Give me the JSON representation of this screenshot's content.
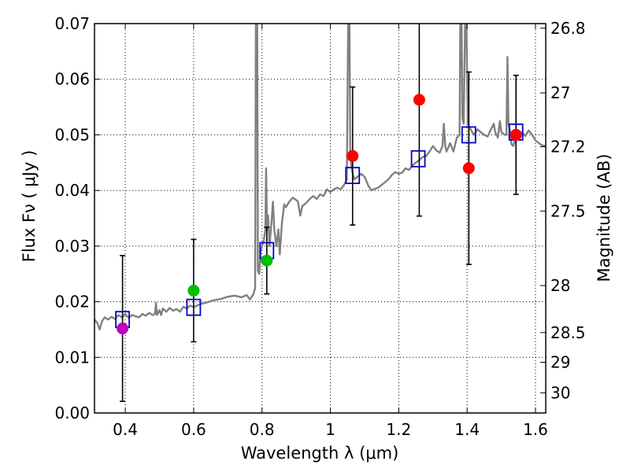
{
  "chart_data": {
    "type": "scatter",
    "xlabel": "Wavelength  λ (μm)",
    "ylabel_left": "Flux  Fν  ( μJy )",
    "ylabel_right": "Magnitude (AB)",
    "xlim": [
      0.31,
      1.63
    ],
    "ylim": [
      0.0,
      0.07
    ],
    "grid": true,
    "x_ticks": [
      0.4,
      0.6,
      0.8,
      1.0,
      1.2,
      1.4,
      1.6
    ],
    "x_tick_labels": [
      "0.4",
      "0.6",
      "0.8",
      "1",
      "1.2",
      "1.4",
      "1.6"
    ],
    "y_ticks": [
      0.0,
      0.01,
      0.02,
      0.03,
      0.04,
      0.05,
      0.06,
      0.07
    ],
    "y_tick_labels": [
      "0.00",
      "0.01",
      "0.02",
      "0.03",
      "0.04",
      "0.05",
      "0.06",
      "0.07"
    ],
    "right_ticks": [
      {
        "mag": 26.8,
        "label": "26.8"
      },
      {
        "mag": 27.0,
        "label": "27"
      },
      {
        "mag": 27.2,
        "label": "27.2"
      },
      {
        "mag": 27.5,
        "label": "27.5"
      },
      {
        "mag": 28.0,
        "label": "28"
      },
      {
        "mag": 28.5,
        "label": "28.5"
      },
      {
        "mag": 29.0,
        "label": "29"
      },
      {
        "mag": 30.0,
        "label": "30"
      }
    ],
    "observed_points": [
      {
        "x": 0.392,
        "y": 0.0152,
        "err": 0.0131,
        "color": "#bf00bf"
      },
      {
        "x": 0.6,
        "y": 0.022,
        "err": 0.0092,
        "color": "#00bf00"
      },
      {
        "x": 0.814,
        "y": 0.0274,
        "err": 0.006,
        "color": "#00bf00"
      },
      {
        "x": 1.065,
        "y": 0.0462,
        "err": 0.0124,
        "color": "#ff0000"
      },
      {
        "x": 1.26,
        "y": 0.0563,
        "err": 0.0209,
        "color": "#ff0000"
      },
      {
        "x": 1.405,
        "y": 0.044,
        "err": 0.0173,
        "color": "#ff0000"
      },
      {
        "x": 1.543,
        "y": 0.05,
        "err": 0.0107,
        "color": "#ff0000"
      }
    ],
    "model_points": [
      {
        "x": 0.392,
        "y": 0.0168
      },
      {
        "x": 0.6,
        "y": 0.019
      },
      {
        "x": 0.814,
        "y": 0.0292
      },
      {
        "x": 1.065,
        "y": 0.0427
      },
      {
        "x": 1.257,
        "y": 0.0457
      },
      {
        "x": 1.405,
        "y": 0.05
      },
      {
        "x": 1.543,
        "y": 0.0505
      }
    ],
    "model_marker_color": "#0000cc",
    "sed_color": "#808080",
    "sed_spectrum": [
      [
        0.31,
        0.0168
      ],
      [
        0.318,
        0.0162
      ],
      [
        0.325,
        0.015
      ],
      [
        0.332,
        0.0165
      ],
      [
        0.34,
        0.0172
      ],
      [
        0.35,
        0.0168
      ],
      [
        0.36,
        0.0173
      ],
      [
        0.37,
        0.0169
      ],
      [
        0.38,
        0.0176
      ],
      [
        0.39,
        0.0172
      ],
      [
        0.4,
        0.0178
      ],
      [
        0.41,
        0.0171
      ],
      [
        0.42,
        0.0176
      ],
      [
        0.43,
        0.0174
      ],
      [
        0.44,
        0.0172
      ],
      [
        0.45,
        0.0178
      ],
      [
        0.46,
        0.0175
      ],
      [
        0.47,
        0.018
      ],
      [
        0.48,
        0.0176
      ],
      [
        0.487,
        0.0178
      ],
      [
        0.49,
        0.0198
      ],
      [
        0.493,
        0.0176
      ],
      [
        0.5,
        0.0185
      ],
      [
        0.505,
        0.0176
      ],
      [
        0.51,
        0.0188
      ],
      [
        0.52,
        0.0182
      ],
      [
        0.53,
        0.0189
      ],
      [
        0.54,
        0.0184
      ],
      [
        0.55,
        0.0187
      ],
      [
        0.56,
        0.0182
      ],
      [
        0.57,
        0.0191
      ],
      [
        0.58,
        0.0188
      ],
      [
        0.59,
        0.0193
      ],
      [
        0.6,
        0.019
      ],
      [
        0.62,
        0.0196
      ],
      [
        0.64,
        0.0199
      ],
      [
        0.66,
        0.0203
      ],
      [
        0.68,
        0.0205
      ],
      [
        0.7,
        0.0209
      ],
      [
        0.72,
        0.0211
      ],
      [
        0.74,
        0.0208
      ],
      [
        0.755,
        0.0212
      ],
      [
        0.765,
        0.0204
      ],
      [
        0.775,
        0.0214
      ],
      [
        0.78,
        0.0225
      ],
      [
        0.782,
        0.07
      ],
      [
        0.786,
        0.07
      ],
      [
        0.788,
        0.0255
      ],
      [
        0.792,
        0.025
      ],
      [
        0.796,
        0.029
      ],
      [
        0.8,
        0.03
      ],
      [
        0.805,
        0.031
      ],
      [
        0.81,
        0.033
      ],
      [
        0.812,
        0.044
      ],
      [
        0.815,
        0.033
      ],
      [
        0.818,
        0.0355
      ],
      [
        0.822,
        0.03
      ],
      [
        0.828,
        0.0345
      ],
      [
        0.832,
        0.038
      ],
      [
        0.836,
        0.033
      ],
      [
        0.842,
        0.03
      ],
      [
        0.848,
        0.033
      ],
      [
        0.852,
        0.0285
      ],
      [
        0.858,
        0.034
      ],
      [
        0.865,
        0.0375
      ],
      [
        0.87,
        0.037
      ],
      [
        0.88,
        0.038
      ],
      [
        0.89,
        0.0387
      ],
      [
        0.9,
        0.0383
      ],
      [
        0.905,
        0.038
      ],
      [
        0.912,
        0.0355
      ],
      [
        0.918,
        0.0372
      ],
      [
        0.93,
        0.0378
      ],
      [
        0.94,
        0.0385
      ],
      [
        0.95,
        0.039
      ],
      [
        0.96,
        0.0385
      ],
      [
        0.97,
        0.0393
      ],
      [
        0.98,
        0.039
      ],
      [
        0.99,
        0.0402
      ],
      [
        1.0,
        0.0397
      ],
      [
        1.01,
        0.0402
      ],
      [
        1.02,
        0.0405
      ],
      [
        1.03,
        0.0402
      ],
      [
        1.04,
        0.041
      ],
      [
        1.048,
        0.042
      ],
      [
        1.052,
        0.07
      ],
      [
        1.056,
        0.07
      ],
      [
        1.058,
        0.047
      ],
      [
        1.062,
        0.044
      ],
      [
        1.07,
        0.042
      ],
      [
        1.08,
        0.0425
      ],
      [
        1.09,
        0.043
      ],
      [
        1.1,
        0.0425
      ],
      [
        1.11,
        0.041
      ],
      [
        1.12,
        0.04
      ],
      [
        1.13,
        0.0403
      ],
      [
        1.14,
        0.0405
      ],
      [
        1.15,
        0.041
      ],
      [
        1.16,
        0.0415
      ],
      [
        1.17,
        0.042
      ],
      [
        1.18,
        0.0428
      ],
      [
        1.19,
        0.0433
      ],
      [
        1.2,
        0.043
      ],
      [
        1.21,
        0.0432
      ],
      [
        1.22,
        0.044
      ],
      [
        1.23,
        0.0437
      ],
      [
        1.24,
        0.0445
      ],
      [
        1.25,
        0.045
      ],
      [
        1.26,
        0.0455
      ],
      [
        1.27,
        0.046
      ],
      [
        1.28,
        0.0462
      ],
      [
        1.29,
        0.047
      ],
      [
        1.3,
        0.048
      ],
      [
        1.31,
        0.0472
      ],
      [
        1.32,
        0.0468
      ],
      [
        1.328,
        0.048
      ],
      [
        1.332,
        0.052
      ],
      [
        1.336,
        0.048
      ],
      [
        1.34,
        0.047
      ],
      [
        1.35,
        0.0485
      ],
      [
        1.36,
        0.047
      ],
      [
        1.37,
        0.0495
      ],
      [
        1.378,
        0.05
      ],
      [
        1.38,
        0.07
      ],
      [
        1.384,
        0.07
      ],
      [
        1.386,
        0.053
      ],
      [
        1.39,
        0.052
      ],
      [
        1.394,
        0.07
      ],
      [
        1.398,
        0.07
      ],
      [
        1.402,
        0.052
      ],
      [
        1.41,
        0.051
      ],
      [
        1.42,
        0.05
      ],
      [
        1.43,
        0.051
      ],
      [
        1.44,
        0.0505
      ],
      [
        1.45,
        0.05
      ],
      [
        1.46,
        0.0497
      ],
      [
        1.47,
        0.051
      ],
      [
        1.478,
        0.052
      ],
      [
        1.482,
        0.0505
      ],
      [
        1.49,
        0.0495
      ],
      [
        1.496,
        0.0525
      ],
      [
        1.5,
        0.0505
      ],
      [
        1.51,
        0.05
      ],
      [
        1.515,
        0.05
      ],
      [
        1.518,
        0.064
      ],
      [
        1.521,
        0.052
      ],
      [
        1.526,
        0.0505
      ],
      [
        1.53,
        0.0483
      ],
      [
        1.535,
        0.048
      ],
      [
        1.54,
        0.049
      ],
      [
        1.55,
        0.0502
      ],
      [
        1.56,
        0.0505
      ],
      [
        1.57,
        0.0498
      ],
      [
        1.58,
        0.0508
      ],
      [
        1.59,
        0.05
      ],
      [
        1.6,
        0.049
      ],
      [
        1.61,
        0.0485
      ],
      [
        1.62,
        0.0481
      ],
      [
        1.63,
        0.048
      ]
    ]
  }
}
